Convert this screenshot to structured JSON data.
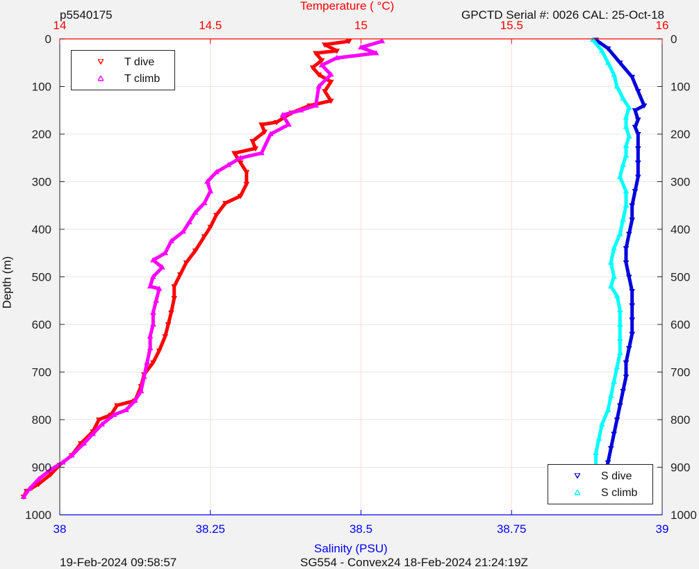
{
  "header": {
    "profile_id": "p5540175",
    "top_axis_title": "Temperature (    °C)",
    "serial_info": "GPCTD Serial #: 0026 CAL: 25-Oct-18"
  },
  "footer": {
    "plot_date": "19-Feb-2024 09:58:57",
    "mission_info": "SG554 - Convex24 18-Feb-2024 21:24:19Z"
  },
  "colors": {
    "t_dive": "#ff0000",
    "t_climb": "#ff00ff",
    "s_dive": "#0000dd",
    "s_climb": "#00ffff",
    "temperature_axis": "#ff0000",
    "salinity_axis": "#0000ff",
    "grid": "#e6e6e6",
    "temperature_grid": "#ffd9d9"
  },
  "legend_temperature": {
    "dive": "T dive",
    "climb": "T climb",
    "placement": "top-left"
  },
  "legend_salinity": {
    "dive": "S dive",
    "climb": "S climb",
    "placement": "bottom-right"
  },
  "chart_data": {
    "type": "line",
    "ylabel": "Depth (m)",
    "ylim": [
      0,
      1000
    ],
    "y_reversed": true,
    "yticks": [
      0,
      100,
      200,
      300,
      400,
      500,
      600,
      700,
      800,
      900,
      1000
    ],
    "top_axis": {
      "label": "Temperature (    °C)",
      "lim": [
        14,
        16
      ],
      "ticks": [
        14,
        14.5,
        15,
        15.5,
        16
      ],
      "tick_labels": [
        "14",
        "14.5",
        "15",
        "15.5",
        "16"
      ]
    },
    "bottom_axis": {
      "label": "Salinity (PSU)",
      "lim": [
        38,
        39
      ],
      "ticks": [
        38,
        38.25,
        38.5,
        38.75,
        39
      ],
      "tick_labels": [
        "38",
        "38.25",
        "38.5",
        "38.75",
        "39"
      ]
    },
    "grid": true,
    "series": [
      {
        "name": "T dive",
        "axis": "temperature",
        "marker": "triangle-down",
        "points": [
          [
            14.96,
            5
          ],
          [
            14.88,
            12
          ],
          [
            14.92,
            25
          ],
          [
            14.85,
            30
          ],
          [
            14.87,
            45
          ],
          [
            14.84,
            60
          ],
          [
            14.86,
            75
          ],
          [
            14.9,
            90
          ],
          [
            14.88,
            110
          ],
          [
            14.9,
            130
          ],
          [
            14.83,
            140
          ],
          [
            14.77,
            155
          ],
          [
            14.72,
            175
          ],
          [
            14.67,
            180
          ],
          [
            14.68,
            195
          ],
          [
            14.64,
            215
          ],
          [
            14.65,
            230
          ],
          [
            14.58,
            240
          ],
          [
            14.6,
            260
          ],
          [
            14.62,
            280
          ],
          [
            14.62,
            305
          ],
          [
            14.6,
            330
          ],
          [
            14.55,
            345
          ],
          [
            14.52,
            370
          ],
          [
            14.5,
            395
          ],
          [
            14.48,
            415
          ],
          [
            14.45,
            445
          ],
          [
            14.42,
            470
          ],
          [
            14.4,
            495
          ],
          [
            14.38,
            520
          ],
          [
            14.38,
            545
          ],
          [
            14.37,
            575
          ],
          [
            14.36,
            600
          ],
          [
            14.35,
            625
          ],
          [
            14.33,
            655
          ],
          [
            14.31,
            680
          ],
          [
            14.28,
            705
          ],
          [
            14.27,
            730
          ],
          [
            14.25,
            760
          ],
          [
            14.19,
            770
          ],
          [
            14.17,
            790
          ],
          [
            14.13,
            800
          ],
          [
            14.11,
            825
          ],
          [
            14.07,
            850
          ],
          [
            14.04,
            875
          ],
          [
            14.0,
            895
          ],
          [
            13.97,
            915
          ],
          [
            13.93,
            935
          ],
          [
            13.89,
            950
          ],
          [
            13.88,
            962
          ]
        ]
      },
      {
        "name": "T climb",
        "axis": "temperature",
        "marker": "triangle-up",
        "points": [
          [
            15.07,
            5
          ],
          [
            15.0,
            18
          ],
          [
            15.05,
            30
          ],
          [
            14.92,
            40
          ],
          [
            14.87,
            55
          ],
          [
            14.9,
            75
          ],
          [
            14.86,
            100
          ],
          [
            14.85,
            140
          ],
          [
            14.8,
            150
          ],
          [
            14.74,
            160
          ],
          [
            14.76,
            180
          ],
          [
            14.7,
            200
          ],
          [
            14.67,
            240
          ],
          [
            14.6,
            250
          ],
          [
            14.56,
            265
          ],
          [
            14.52,
            280
          ],
          [
            14.49,
            300
          ],
          [
            14.5,
            320
          ],
          [
            14.48,
            345
          ],
          [
            14.45,
            365
          ],
          [
            14.43,
            385
          ],
          [
            14.41,
            405
          ],
          [
            14.37,
            425
          ],
          [
            14.35,
            450
          ],
          [
            14.31,
            465
          ],
          [
            14.34,
            480
          ],
          [
            14.31,
            500
          ],
          [
            14.3,
            520
          ],
          [
            14.33,
            525
          ],
          [
            14.32,
            550
          ],
          [
            14.31,
            575
          ],
          [
            14.31,
            600
          ],
          [
            14.3,
            625
          ],
          [
            14.3,
            650
          ],
          [
            14.29,
            680
          ],
          [
            14.28,
            710
          ],
          [
            14.27,
            740
          ],
          [
            14.25,
            760
          ],
          [
            14.22,
            780
          ],
          [
            14.18,
            790
          ],
          [
            14.14,
            810
          ],
          [
            14.11,
            830
          ],
          [
            14.08,
            850
          ],
          [
            14.04,
            875
          ],
          [
            14.01,
            890
          ],
          [
            13.97,
            905
          ],
          [
            13.93,
            925
          ],
          [
            13.9,
            945
          ],
          [
            13.88,
            962
          ]
        ]
      },
      {
        "name": "S dive",
        "axis": "salinity",
        "marker": "triangle-down",
        "points": [
          [
            38.89,
            2
          ],
          [
            38.91,
            20
          ],
          [
            38.93,
            50
          ],
          [
            38.95,
            80
          ],
          [
            38.96,
            110
          ],
          [
            38.97,
            140
          ],
          [
            38.955,
            150
          ],
          [
            38.96,
            170
          ],
          [
            38.955,
            185
          ],
          [
            38.96,
            200
          ],
          [
            38.96,
            230
          ],
          [
            38.96,
            260
          ],
          [
            38.96,
            290
          ],
          [
            38.955,
            320
          ],
          [
            38.95,
            350
          ],
          [
            38.95,
            380
          ],
          [
            38.945,
            410
          ],
          [
            38.94,
            440
          ],
          [
            38.94,
            470
          ],
          [
            38.945,
            500
          ],
          [
            38.95,
            530
          ],
          [
            38.95,
            560
          ],
          [
            38.95,
            590
          ],
          [
            38.95,
            620
          ],
          [
            38.945,
            650
          ],
          [
            38.94,
            680
          ],
          [
            38.94,
            710
          ],
          [
            38.935,
            740
          ],
          [
            38.93,
            770
          ],
          [
            38.925,
            800
          ],
          [
            38.92,
            830
          ],
          [
            38.915,
            860
          ],
          [
            38.91,
            890
          ],
          [
            38.905,
            920
          ],
          [
            38.9,
            945
          ],
          [
            38.9,
            962
          ]
        ]
      },
      {
        "name": "S climb",
        "axis": "salinity",
        "marker": "triangle-up",
        "points": [
          [
            38.885,
            2
          ],
          [
            38.9,
            25
          ],
          [
            38.91,
            50
          ],
          [
            38.92,
            75
          ],
          [
            38.925,
            100
          ],
          [
            38.935,
            125
          ],
          [
            38.945,
            145
          ],
          [
            38.94,
            165
          ],
          [
            38.94,
            185
          ],
          [
            38.945,
            205
          ],
          [
            38.94,
            225
          ],
          [
            38.94,
            245
          ],
          [
            38.935,
            265
          ],
          [
            38.93,
            290
          ],
          [
            38.94,
            320
          ],
          [
            38.94,
            350
          ],
          [
            38.935,
            380
          ],
          [
            38.93,
            410
          ],
          [
            38.92,
            440
          ],
          [
            38.915,
            470
          ],
          [
            38.92,
            500
          ],
          [
            38.915,
            520
          ],
          [
            38.925,
            540
          ],
          [
            38.93,
            570
          ],
          [
            38.93,
            600
          ],
          [
            38.93,
            630
          ],
          [
            38.93,
            660
          ],
          [
            38.925,
            690
          ],
          [
            38.92,
            720
          ],
          [
            38.915,
            750
          ],
          [
            38.91,
            780
          ],
          [
            38.9,
            810
          ],
          [
            38.895,
            840
          ],
          [
            38.89,
            870
          ],
          [
            38.89,
            900
          ],
          [
            38.885,
            930
          ],
          [
            38.885,
            962
          ]
        ]
      }
    ]
  }
}
